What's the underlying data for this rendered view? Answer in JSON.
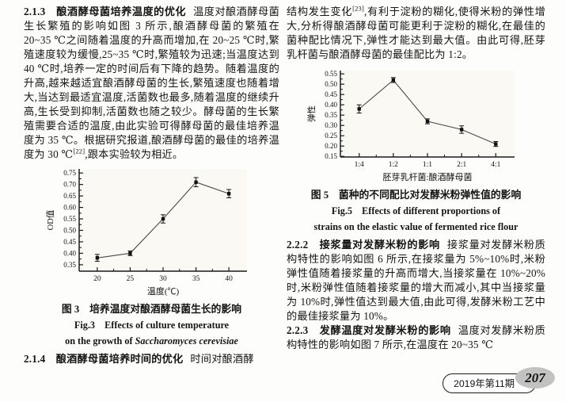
{
  "left_column": {
    "section_213": {
      "heading": "2.1.3　酿酒酵母菌培养温度的优化",
      "body_before_ref": "温度对酿酒酵母菌生长繁殖的影响如图 3 所示,酿酒酵母菌的繁殖在 20~35 ℃之间随着温度的升高而增加,在 20~25 ℃时,繁殖速度较为缓慢,25~35 ℃时,繁殖较为迅速;当温度达到 40 ℃时,培养一定的时间后有下降的趋势。随着温度的升高,越来越适宜酿酒酵母菌的生长,繁殖速度也随着增大,当达到最适宜温度,活菌数也最多,随着温度的继续升高,生长受到抑制,活菌数也随之较少。酵母菌的生长繁殖需要合适的温度,由此实验可得酵母菌的最佳培养温度为 35 ℃。根据研究报道,酿酒酵母菌的最佳的培养温度为 30 ℃",
      "reference": "[22]",
      "body_after_ref": ",跟本实验较为相近。"
    },
    "figure3": {
      "caption_zh": "图 3　培养温度对酿酒酵母菌生长的影响",
      "caption_en_line1": "Fig.3　Effects of culture temperature",
      "caption_en_line2_prefix": "on the growth of ",
      "caption_en_line2_italic": "Saccharomyces cerevisiae"
    },
    "section_214": {
      "heading": "2.1.4　酿酒酵母菌培养时间的优化",
      "body": "时间对酿酒酵"
    }
  },
  "right_column": {
    "paragraph_top": {
      "body_before_ref": "结构发生变化",
      "reference": "[23]",
      "body_after_ref": ",有利于淀粉的糊化,使得米粉的弹性增大,分析得酿酒酵母菌可能更利于淀粉的糊化,在最佳的菌种配比情况下,弹性才能达到最大值。由此可得,胚芽乳杆菌与酿酒酵母菌的最佳配比为 1:2。"
    },
    "figure5": {
      "caption_zh": "图 5　菌种的不同配比对发酵米粉弹性值的影响",
      "caption_en_line1": "Fig.5　Effects of different proportions of",
      "caption_en_line2": "strains on the elastic value of fermented rice flour"
    },
    "section_222": {
      "heading": "2.2.2　接浆量对发酵米粉的影响",
      "body": "接浆量对发酵米粉质构特性的影响如图 6 所示,在接浆量为 5%~10%时,米粉弹性值随着接浆量的升高而增大,当接浆量在 10%~20%时,米粉弹性值随着接浆量的增大而减小,其中当接浆量为 10%时,弹性值达到最大值,由此可得,发酵米粉工艺中的最佳接浆量为 10%。"
    },
    "section_223": {
      "heading": "2.2.3　发酵温度对发酵米粉的影响",
      "body": "温度对发酵米粉质构特性的影响如图 7 所示,在温度在 20~35 ℃"
    }
  },
  "footer": {
    "issue": "2019年第11期",
    "page_number": "207"
  },
  "chart_data": [
    {
      "id": "fig3",
      "type": "line",
      "title": "图3 培养温度对酿酒酵母菌生长的影响",
      "xlabel": "温度(℃)",
      "ylabel": "OD值",
      "categories": [
        "20",
        "25",
        "30",
        "35",
        "40"
      ],
      "values": [
        0.38,
        0.4,
        0.55,
        0.71,
        0.66
      ],
      "errors": [
        0.015,
        0.01,
        0.018,
        0.02,
        0.018
      ],
      "yticks": [
        0.35,
        0.4,
        0.45,
        0.5,
        0.55,
        0.6,
        0.65,
        0.7,
        0.75
      ],
      "ylim": [
        0.322,
        0.768
      ],
      "grid": false,
      "legend": "none",
      "line_color": "#4a4a4a",
      "marker_color": "#111111"
    },
    {
      "id": "fig5",
      "type": "line",
      "title": "图5 菌种的不同配比对发酵米粉弹性值的影响",
      "xlabel": "胚芽乳杆菌:酿酒酵母菌",
      "ylabel": "弹性",
      "categories": [
        "1:4",
        "1:2",
        "1:1",
        "2:1",
        "4:1"
      ],
      "values": [
        0.38,
        0.52,
        0.32,
        0.28,
        0.21
      ],
      "errors": [
        0.02,
        0.012,
        0.012,
        0.018,
        0.012
      ],
      "yticks": [
        0.15,
        0.2,
        0.25,
        0.3,
        0.35,
        0.4,
        0.45,
        0.5,
        0.55
      ],
      "ylim": [
        0.147,
        0.566
      ],
      "grid": false,
      "legend": "none",
      "line_color": "#4a4a4a",
      "marker_color": "#111111"
    }
  ]
}
